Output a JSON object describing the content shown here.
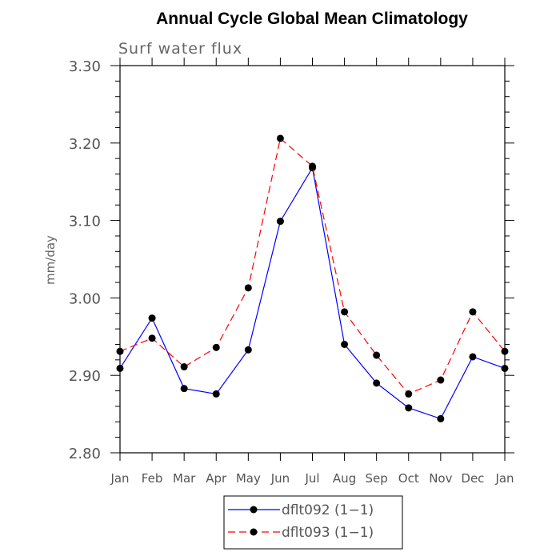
{
  "chart_data": {
    "type": "line",
    "title": "Annual Cycle Global Mean Climatology",
    "subtitle": "Surf water flux",
    "xlabel": "",
    "ylabel": "mm/day",
    "categories": [
      "Jan",
      "Feb",
      "Mar",
      "Apr",
      "May",
      "Jun",
      "Jul",
      "Aug",
      "Sep",
      "Oct",
      "Nov",
      "Dec",
      "Jan"
    ],
    "ylim": [
      2.8,
      3.3
    ],
    "yticks": [
      "2.80",
      "2.90",
      "3.00",
      "3.10",
      "3.20",
      "3.30"
    ],
    "grid": false,
    "legend_position": "bottom-center",
    "series": [
      {
        "name": "dflt092 (1−1)",
        "color": "#0000ff",
        "line_style": "solid",
        "values": [
          2.909,
          2.974,
          2.883,
          2.876,
          2.933,
          3.099,
          3.168,
          2.94,
          2.89,
          2.858,
          2.844,
          2.924,
          2.909
        ]
      },
      {
        "name": "dflt093 (1−1)",
        "color": "#ff0000",
        "line_style": "dashed",
        "values": [
          2.931,
          2.948,
          2.911,
          2.936,
          3.013,
          3.206,
          3.17,
          2.982,
          2.926,
          2.876,
          2.894,
          2.982,
          2.931
        ]
      }
    ]
  }
}
